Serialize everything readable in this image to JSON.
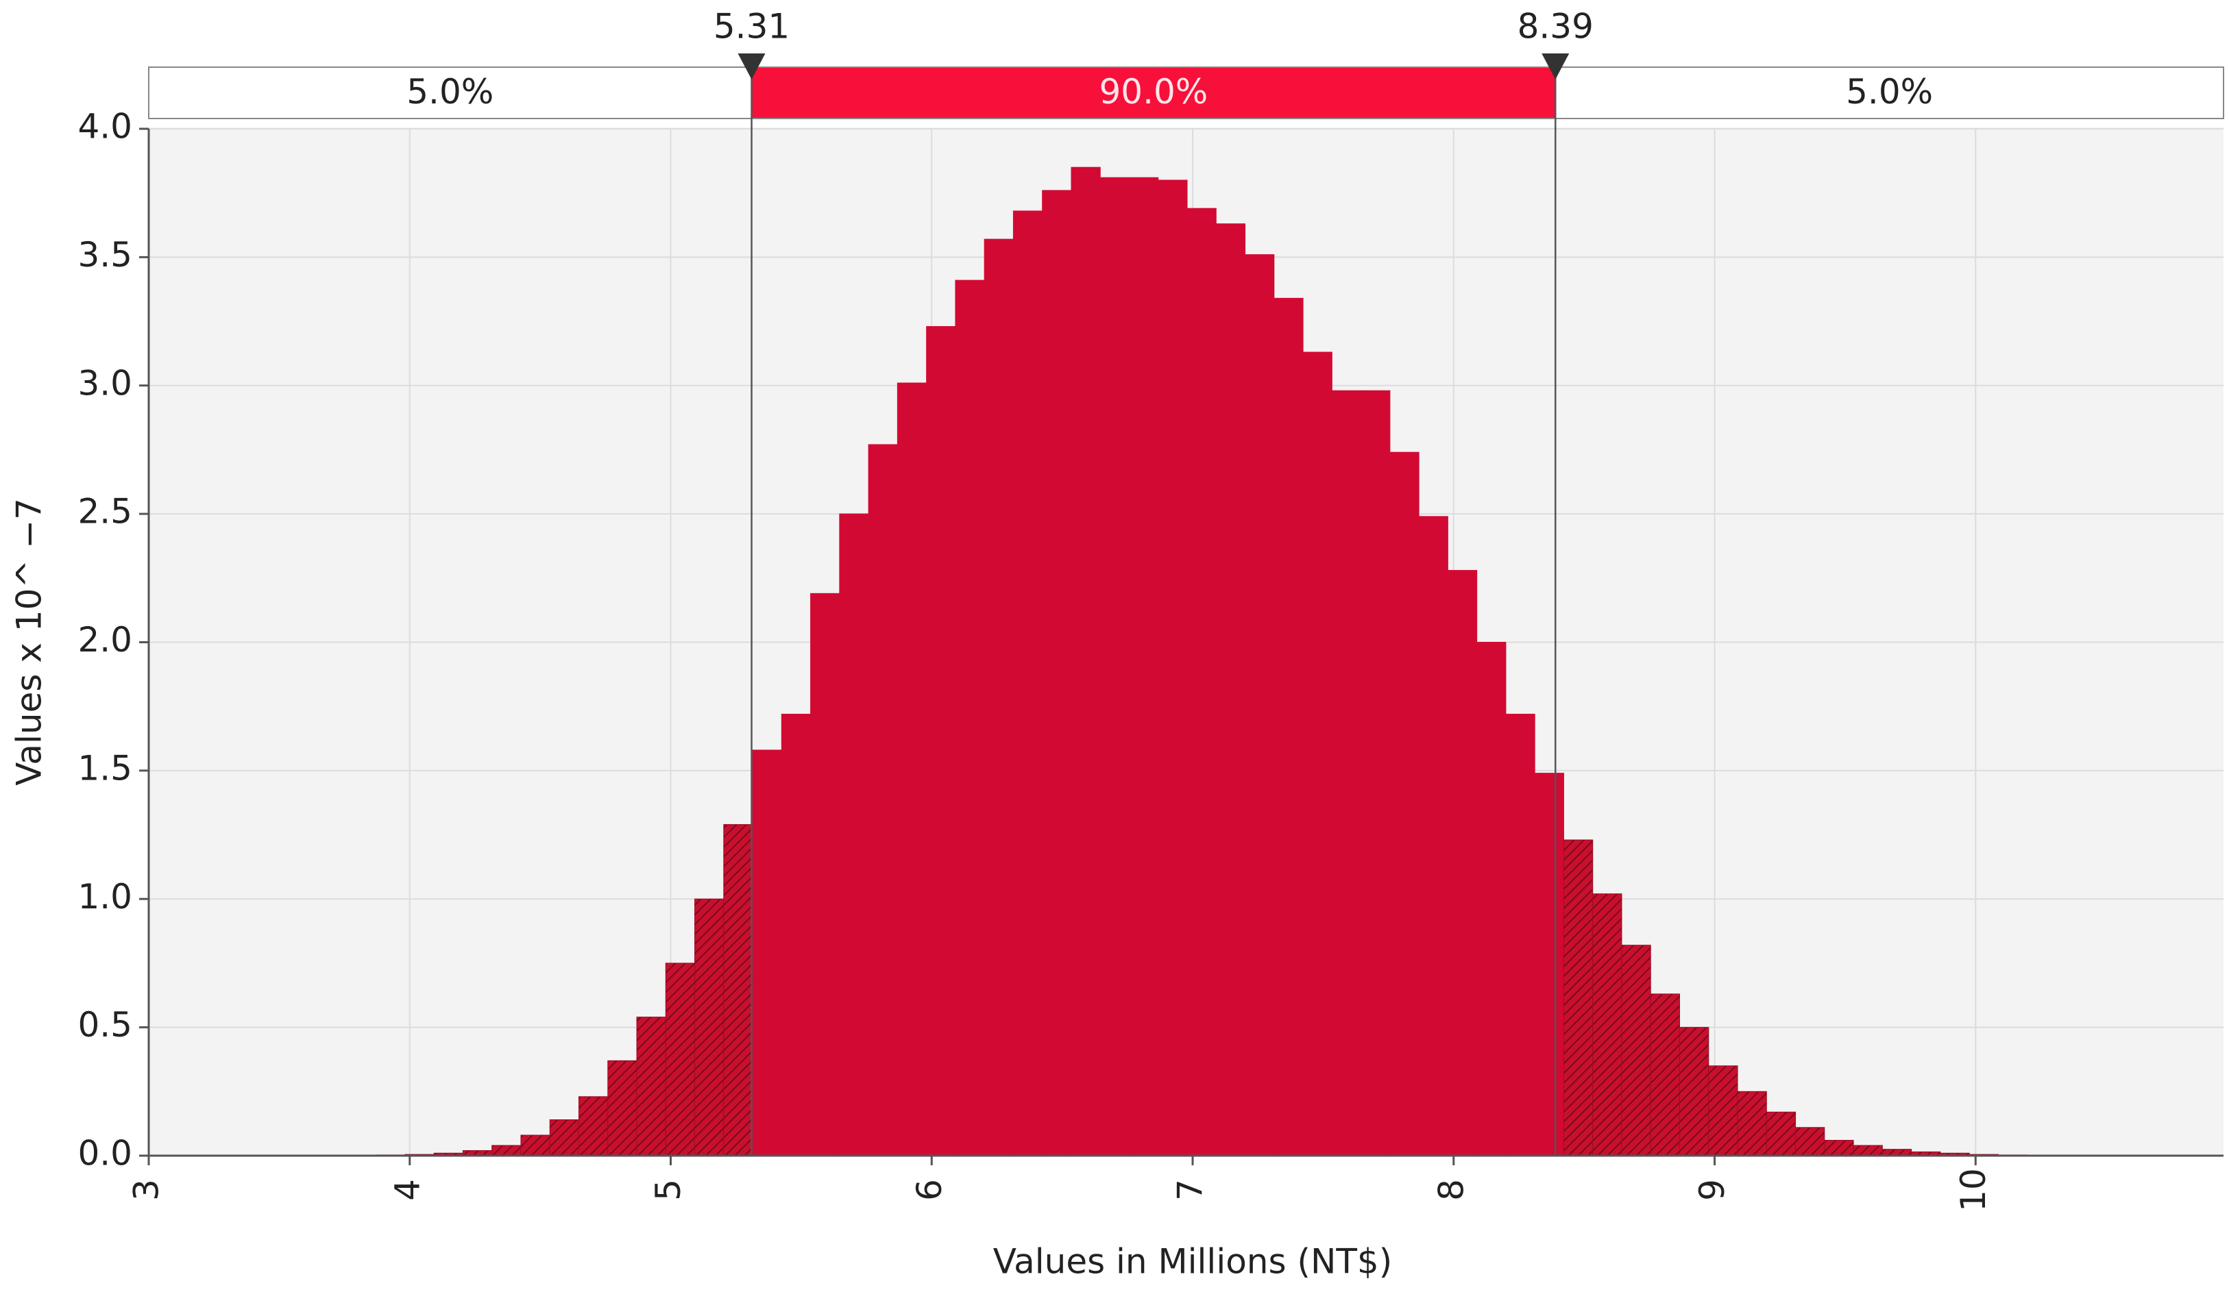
{
  "chart_data": {
    "type": "histogram",
    "xlabel": "Values in Millions (NT$)",
    "ylabel": "Values x 10^ −7",
    "bins": [
      3.76,
      3.871,
      3.982,
      4.093,
      4.204,
      4.315,
      4.426,
      4.537,
      4.648,
      4.759,
      4.87,
      4.981,
      5.092,
      5.203,
      5.314,
      5.425,
      5.536,
      5.647,
      5.758,
      5.869,
      5.98,
      6.091,
      6.202,
      6.313,
      6.424,
      6.535,
      6.646,
      6.757,
      6.868,
      6.979,
      7.09,
      7.201,
      7.312,
      7.423,
      7.534,
      7.645,
      7.756,
      7.867,
      7.978,
      8.089,
      8.2,
      8.311,
      8.422,
      8.533,
      8.644,
      8.755,
      8.866,
      8.977,
      9.088,
      9.199,
      9.31,
      9.421,
      9.532,
      9.643,
      9.754,
      9.865,
      9.976,
      10.087,
      10.198,
      10.309
    ],
    "values": [
      0.002,
      0.003,
      0.005,
      0.01,
      0.02,
      0.04,
      0.08,
      0.14,
      0.23,
      0.37,
      0.54,
      0.75,
      1.0,
      1.29,
      1.58,
      1.72,
      2.19,
      2.5,
      2.77,
      3.01,
      3.23,
      3.41,
      3.57,
      3.68,
      3.76,
      3.85,
      3.81,
      3.81,
      3.8,
      3.69,
      3.63,
      3.51,
      3.34,
      3.13,
      2.98,
      2.98,
      2.74,
      2.49,
      2.28,
      2.0,
      1.72,
      1.49,
      1.23,
      1.02,
      0.82,
      0.63,
      0.5,
      0.35,
      0.25,
      0.17,
      0.11,
      0.06,
      0.04,
      0.025,
      0.015,
      0.01,
      0.005,
      0.003,
      0.002
    ],
    "color": "#d20a33",
    "delimiters": [
      5.31,
      8.39
    ],
    "regions": [
      {
        "value": 5.0,
        "label": "5.0%"
      },
      {
        "value": 90.0,
        "label": "90.0%"
      },
      {
        "value": 5.0,
        "label": "5.0%"
      }
    ],
    "xlim": [
      3,
      10.95
    ],
    "xticks": [
      3,
      4,
      5,
      6,
      7,
      8,
      9,
      10
    ],
    "ylim": [
      0,
      4
    ],
    "yticks": [
      {
        "value": 0,
        "label": "0.0"
      },
      0.5,
      {
        "value": 1,
        "label": "1.0"
      },
      1.5,
      {
        "value": 2,
        "label": "2.0"
      },
      2.5,
      {
        "value": 3,
        "label": "3.0"
      },
      3.5,
      {
        "value": 4,
        "label": "4.0"
      }
    ],
    "grid": true
  }
}
